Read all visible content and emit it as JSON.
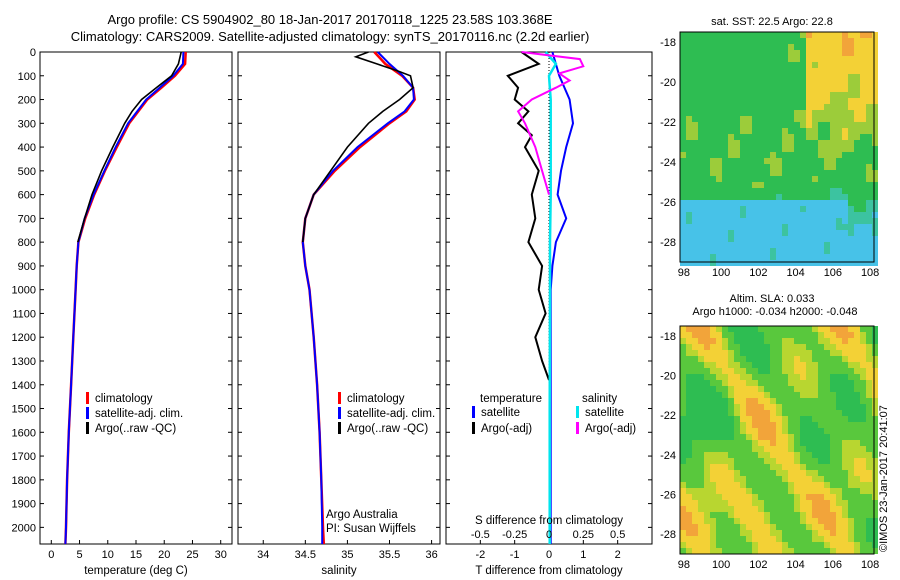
{
  "header": {
    "line1": "Argo profile: CS 5904902_80 18-Jan-2017 20170118_1225 23.58S 103.368E",
    "line2": "Climatology: CARS2009. Satellite-adjusted climatology: synTS_20170116.nc (2.2d earlier)"
  },
  "colors": {
    "climatology": "#ff0000",
    "satellite": "#0000ff",
    "argo": "#000000",
    "sal_satellite": "#00e5ee",
    "sal_argo": "#ff00ff"
  },
  "chart_data": [
    {
      "type": "line",
      "xlabel": "temperature (deg C)",
      "ylabel": "",
      "xlim": [
        -2,
        32
      ],
      "ylim": [
        2070,
        0
      ],
      "x_ticks": [
        "0",
        "5",
        "10",
        "15",
        "20",
        "25",
        "30"
      ],
      "y_ticks": [
        "0",
        "100",
        "200",
        "300",
        "400",
        "500",
        "600",
        "700",
        "800",
        "900",
        "1000",
        "1100",
        "1200",
        "1300",
        "1400",
        "1500",
        "1600",
        "1700",
        "1800",
        "1900",
        "2000"
      ],
      "legend": [
        "climatology",
        "satellite-adj. clim.",
        "Argo(..raw -QC)"
      ],
      "series": [
        {
          "name": "climatology",
          "depth": [
            0,
            50,
            100,
            150,
            200,
            300,
            400,
            500,
            600,
            700,
            800,
            900,
            1000,
            1200,
            1400,
            1600,
            1800,
            2000,
            2070
          ],
          "values": [
            23.8,
            23.7,
            21.9,
            19.5,
            17.0,
            13.8,
            11.6,
            9.5,
            7.6,
            6.0,
            4.8,
            4.5,
            4.3,
            3.9,
            3.5,
            3.1,
            2.8,
            2.6,
            2.5
          ]
        },
        {
          "name": "satellite-adj. clim.",
          "depth": [
            0,
            50,
            100,
            150,
            200,
            300,
            400,
            500,
            600,
            700,
            800,
            900,
            1000,
            1200,
            1400,
            1600,
            1800,
            2000,
            2070
          ],
          "values": [
            23.4,
            23.3,
            21.6,
            19.2,
            16.8,
            13.6,
            11.4,
            9.4,
            7.5,
            5.9,
            4.8,
            4.5,
            4.3,
            3.9,
            3.5,
            3.1,
            2.8,
            2.6,
            2.5
          ]
        },
        {
          "name": "Argo(..raw -QC)",
          "depth": [
            0,
            50,
            100,
            150,
            200,
            250,
            300,
            400,
            500,
            600,
            700,
            800
          ],
          "values": [
            23.0,
            22.5,
            21.3,
            18.6,
            16.0,
            14.3,
            13.0,
            10.9,
            8.9,
            7.2,
            5.9,
            4.7
          ]
        }
      ]
    },
    {
      "type": "line",
      "xlabel": "salinity",
      "xlim": [
        33.7,
        36.1
      ],
      "ylim": [
        2070,
        0
      ],
      "x_ticks": [
        "34",
        "34.5",
        "35",
        "35.5",
        "36"
      ],
      "legend": [
        "climatology",
        "satellite-adj. clim.",
        "Argo(..raw -QC)"
      ],
      "series": [
        {
          "name": "climatology",
          "depth": [
            0,
            50,
            100,
            150,
            200,
            250,
            300,
            400,
            500,
            600,
            700,
            800,
            900,
            1000,
            1200,
            1400,
            1600,
            1800,
            2000,
            2070
          ],
          "values": [
            35.32,
            35.45,
            35.65,
            35.78,
            35.8,
            35.7,
            35.5,
            35.15,
            34.85,
            34.6,
            34.5,
            34.47,
            34.5,
            34.55,
            34.6,
            34.64,
            34.67,
            34.69,
            34.71,
            34.72
          ]
        },
        {
          "name": "satellite-adj. clim.",
          "depth": [
            0,
            50,
            100,
            150,
            200,
            250,
            300,
            400,
            500,
            600,
            700,
            800,
            900,
            1000,
            1200,
            1400,
            1600,
            1800,
            2000,
            2070
          ],
          "values": [
            35.36,
            35.5,
            35.66,
            35.78,
            35.79,
            35.68,
            35.48,
            35.12,
            34.83,
            34.6,
            34.5,
            34.47,
            34.5,
            34.55,
            34.6,
            34.64,
            34.67,
            34.69,
            34.7,
            34.7
          ]
        },
        {
          "name": "Argo(..raw -QC)",
          "depth": [
            0,
            20,
            50,
            80,
            100,
            150,
            200,
            250,
            300,
            400,
            500,
            600,
            700,
            800
          ],
          "values": [
            35.25,
            35.1,
            35.35,
            35.6,
            35.75,
            35.78,
            35.62,
            35.42,
            35.25,
            35.0,
            34.8,
            34.6,
            34.5,
            34.47
          ]
        }
      ],
      "annotations": [
        "Argo Australia",
        "PI: Susan Wijffels"
      ]
    },
    {
      "type": "line",
      "xlabel": "T difference from climatology",
      "title": "S difference from climatology",
      "xlim": [
        -3,
        3
      ],
      "ylim": [
        2070,
        0
      ],
      "x_ticks": [
        "-2",
        "-1",
        "0",
        "1",
        "2"
      ],
      "top_ticks": [
        "-0.5",
        "-0.25",
        "0",
        "0.25",
        "0.5"
      ],
      "legend_headers": [
        "temperature",
        "salinity"
      ],
      "legend": [
        "satellite",
        "Argo(-adj)",
        "satellite",
        "Argo(-adj)"
      ],
      "series": [
        {
          "name": "satellite",
          "depth": [
            0,
            100,
            200,
            300,
            400,
            500,
            600,
            700,
            800,
            900,
            1000,
            1200,
            1500,
            2000,
            2070
          ],
          "values": [
            0.1,
            0.3,
            0.6,
            0.7,
            0.5,
            0.35,
            0.25,
            0.5,
            0.2,
            0.1,
            0.05,
            0.05,
            0.05,
            0.05,
            0.05
          ]
        },
        {
          "name": "Argo(-adj)",
          "depth": [
            0,
            50,
            100,
            150,
            200,
            250,
            300,
            350,
            400,
            500,
            600,
            700,
            800,
            900,
            1000,
            1100,
            1200,
            1300,
            1380
          ],
          "values": [
            -0.8,
            -0.3,
            -1.2,
            -0.9,
            -1.0,
            -0.6,
            -0.9,
            -0.5,
            -0.7,
            -0.3,
            -0.5,
            -0.4,
            -0.6,
            -0.2,
            -0.3,
            -0.1,
            -0.4,
            -0.2,
            0.0
          ]
        },
        {
          "name": "satellite",
          "depth": [
            0,
            50,
            100,
            200,
            400,
            600,
            800,
            1000,
            1500,
            2000,
            2070
          ],
          "values": [
            -0.1,
            0.2,
            0.0,
            0.05,
            0.05,
            0.05,
            0.03,
            0.03,
            0.02,
            0.02,
            0.02
          ]
        },
        {
          "name": "Argo(-adj)",
          "depth": [
            0,
            30,
            60,
            90,
            120,
            150,
            200,
            250,
            300,
            400,
            500,
            600
          ],
          "values": [
            -0.8,
            0.9,
            1.0,
            0.3,
            0.6,
            0.2,
            -0.5,
            -0.9,
            -0.7,
            -0.4,
            -0.2,
            0.0
          ]
        }
      ]
    },
    {
      "type": "heatmap",
      "title": "sat. SST: 22.5  Argo: 22.8",
      "x_ticks": [
        "98",
        "100",
        "102",
        "104",
        "106",
        "108"
      ],
      "y_ticks": [
        "-18",
        "-20",
        "-22",
        "-24",
        "-26",
        "-28"
      ]
    },
    {
      "type": "heatmap",
      "title": "Altim. SLA: 0.033",
      "subtitle": "Argo h1000: -0.034 h2000: -0.048",
      "x_ticks": [
        "98",
        "100",
        "102",
        "104",
        "106",
        "108"
      ],
      "y_ticks": [
        "-18",
        "-20",
        "-22",
        "-24",
        "-26",
        "-28"
      ]
    }
  ],
  "credit": "©IMOS 23-Jan-2017 20:41:07"
}
